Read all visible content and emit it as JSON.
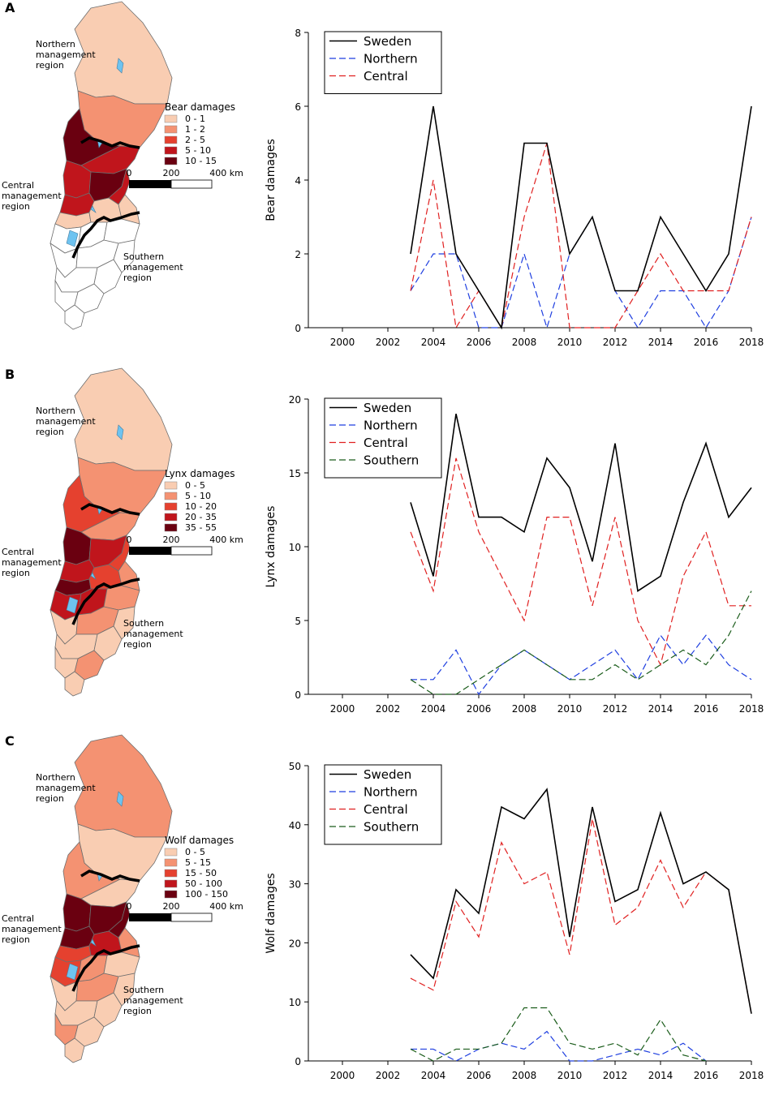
{
  "region_labels": {
    "northern": [
      "Northern",
      "management",
      "region"
    ],
    "central": [
      "Central",
      "management",
      "region"
    ],
    "southern": [
      "Southern",
      "management",
      "region"
    ]
  },
  "scale_bar": {
    "ticks": [
      "0",
      "200",
      "400 km"
    ]
  },
  "x_ticks": [
    "2000",
    "2002",
    "2004",
    "2006",
    "2008",
    "2010",
    "2012",
    "2014",
    "2016",
    "2018"
  ],
  "series_colors": {
    "Sweden": "#000000",
    "Northern": "#1f3fe0",
    "Central": "#e02020",
    "Southern": "#1a5c1a"
  },
  "panels": [
    {
      "letter": "A",
      "map_legend": {
        "title": "Bear damages",
        "bins": [
          "0 -  1",
          "1 -  2",
          "2 -  5",
          "5 - 10",
          "10 - 15"
        ],
        "colors": [
          "#f9cdb2",
          "#f49272",
          "#e5412f",
          "#c0151c",
          "#6a0010"
        ]
      },
      "chart_data": {
        "type": "line",
        "ylabel": "Bear damages",
        "xlabel": "",
        "xlim": [
          1998.5,
          2018
        ],
        "ylim": [
          0,
          8
        ],
        "yticks": [
          0,
          2,
          4,
          6,
          8
        ],
        "legend_position": "top-left",
        "x": [
          2003,
          2004,
          2005,
          2006,
          2007,
          2008,
          2009,
          2010,
          2011,
          2012,
          2013,
          2014,
          2015,
          2016,
          2017,
          2018
        ],
        "series": [
          {
            "name": "Sweden",
            "style": "solid",
            "values": [
              2,
              6,
              2,
              1,
              0,
              5,
              5,
              2,
              3,
              1,
              1,
              3,
              2,
              1,
              2,
              6
            ]
          },
          {
            "name": "Northern",
            "style": "dashed",
            "values": [
              1,
              2,
              2,
              0,
              0,
              2,
              0,
              2,
              3,
              1,
              0,
              1,
              1,
              0,
              1,
              3
            ]
          },
          {
            "name": "Central",
            "style": "dashed",
            "values": [
              1,
              4,
              0,
              1,
              0,
              3,
              5,
              0,
              0,
              0,
              1,
              2,
              1,
              1,
              1,
              3
            ]
          }
        ]
      }
    },
    {
      "letter": "B",
      "map_legend": {
        "title": "Lynx damages",
        "bins": [
          "0 -  5",
          "5 - 10",
          "10 - 20",
          "20 - 35",
          "35 - 55"
        ],
        "colors": [
          "#f9cdb2",
          "#f49272",
          "#e5412f",
          "#c0151c",
          "#6a0010"
        ]
      },
      "chart_data": {
        "type": "line",
        "ylabel": "Lynx damages",
        "xlabel": "",
        "xlim": [
          1998.5,
          2018
        ],
        "ylim": [
          0,
          20
        ],
        "yticks": [
          0,
          5,
          10,
          15,
          20
        ],
        "legend_position": "top-left",
        "x": [
          2003,
          2004,
          2005,
          2006,
          2007,
          2008,
          2009,
          2010,
          2011,
          2012,
          2013,
          2014,
          2015,
          2016,
          2017,
          2018
        ],
        "series": [
          {
            "name": "Sweden",
            "style": "solid",
            "values": [
              13,
              8,
              19,
              12,
              12,
              11,
              16,
              14,
              9,
              17,
              7,
              8,
              13,
              17,
              12,
              14
            ]
          },
          {
            "name": "Northern",
            "style": "dashed",
            "values": [
              1,
              1,
              3,
              0,
              2,
              3,
              2,
              1,
              2,
              3,
              1,
              4,
              2,
              4,
              2,
              1
            ]
          },
          {
            "name": "Central",
            "style": "dashed",
            "values": [
              11,
              7,
              16,
              11,
              8,
              5,
              12,
              12,
              6,
              12,
              5,
              2,
              8,
              11,
              6,
              6
            ]
          },
          {
            "name": "Southern",
            "style": "dashed",
            "values": [
              1,
              0,
              0,
              1,
              2,
              3,
              2,
              1,
              1,
              2,
              1,
              2,
              3,
              2,
              4,
              7
            ]
          }
        ]
      }
    },
    {
      "letter": "C",
      "map_legend": {
        "title": "Wolf damages",
        "bins": [
          "0 -    5",
          "5 -  15",
          "15 -  50",
          "50 - 100",
          "100 - 150"
        ],
        "colors": [
          "#f9cdb2",
          "#f49272",
          "#e5412f",
          "#c0151c",
          "#6a0010"
        ]
      },
      "chart_data": {
        "type": "line",
        "ylabel": "Wolf damages",
        "xlabel": "",
        "xlim": [
          1998.5,
          2018
        ],
        "ylim": [
          0,
          50
        ],
        "yticks": [
          0,
          10,
          20,
          30,
          40,
          50
        ],
        "legend_position": "top-left",
        "x": [
          2003,
          2004,
          2005,
          2006,
          2007,
          2008,
          2009,
          2010,
          2011,
          2012,
          2013,
          2014,
          2015,
          2016,
          2017,
          2018
        ],
        "series": [
          {
            "name": "Sweden",
            "style": "solid",
            "values": [
              18,
              14,
              29,
              25,
              43,
              41,
              46,
              21,
              43,
              27,
              29,
              42,
              30,
              32,
              29,
              8
            ]
          },
          {
            "name": "Northern",
            "style": "dashed",
            "values": [
              2,
              2,
              0,
              2,
              3,
              2,
              5,
              0,
              0,
              1,
              2,
              1,
              3,
              0,
              null,
              null
            ]
          },
          {
            "name": "Central",
            "style": "dashed",
            "values": [
              14,
              12,
              27,
              21,
              37,
              30,
              32,
              18,
              41,
              23,
              26,
              34,
              26,
              32,
              29,
              8
            ]
          },
          {
            "name": "Southern",
            "style": "dashed",
            "values": [
              2,
              0,
              2,
              2,
              3,
              9,
              9,
              3,
              2,
              3,
              1,
              7,
              1,
              0,
              null,
              null
            ]
          }
        ]
      }
    }
  ]
}
